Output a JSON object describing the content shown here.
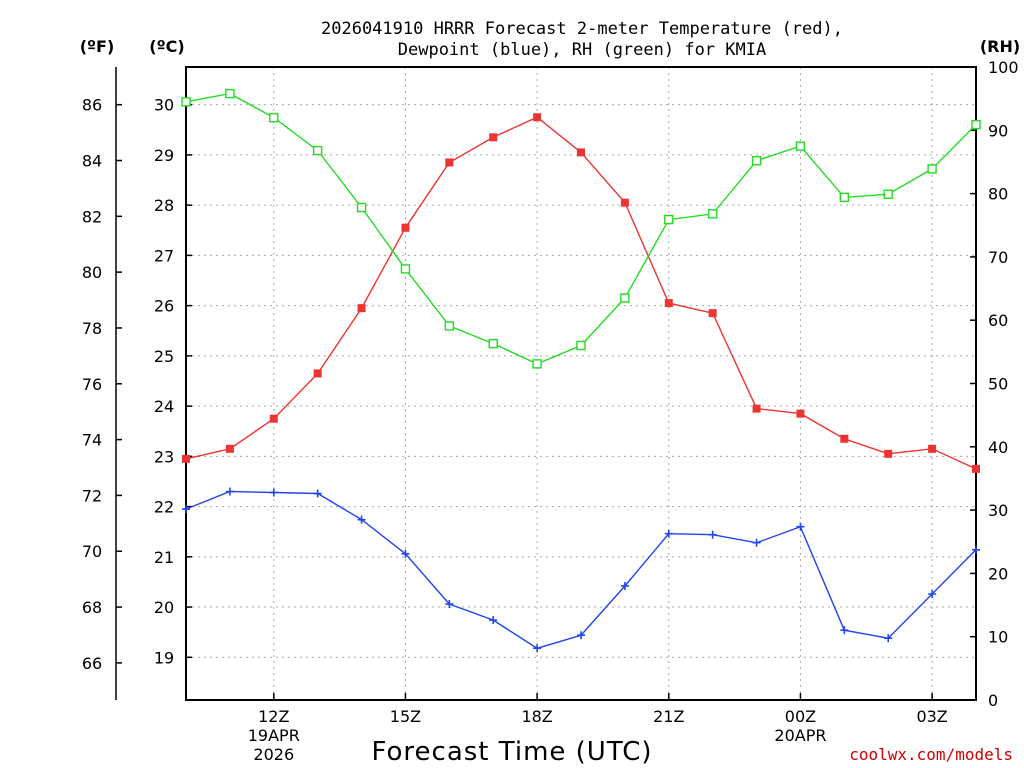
{
  "chart_data": {
    "type": "line",
    "title_line1": "2026041910 HRRR Forecast 2-meter Temperature (red),",
    "title_line2": "Dewpoint (blue), RH (green) for KMIA",
    "unit_f": "(ºF)",
    "unit_c": "(ºC)",
    "unit_rh": "(RH)",
    "xlabel": "Forecast Time (UTC)",
    "credit": "coolwx.com/models",
    "x_hours": [
      10,
      11,
      12,
      13,
      14,
      15,
      16,
      17,
      18,
      19,
      20,
      21,
      22,
      23,
      24,
      25,
      26,
      27,
      28
    ],
    "x_range": [
      10,
      28
    ],
    "x_ticks": [
      {
        "hour": 12,
        "line1": "12Z",
        "line2": "19APR",
        "line3": "2026"
      },
      {
        "hour": 15,
        "line1": "15Z",
        "line2": "",
        "line3": ""
      },
      {
        "hour": 18,
        "line1": "18Z",
        "line2": "",
        "line3": ""
      },
      {
        "hour": 21,
        "line1": "21Z",
        "line2": "",
        "line3": ""
      },
      {
        "hour": 24,
        "line1": "00Z",
        "line2": "20APR",
        "line3": ""
      },
      {
        "hour": 27,
        "line1": "03Z",
        "line2": "",
        "line3": ""
      }
    ],
    "y_left_c": {
      "range": [
        18.15,
        30.75
      ],
      "ticks": [
        19,
        20,
        21,
        22,
        23,
        24,
        25,
        26,
        27,
        28,
        29,
        30
      ]
    },
    "y_left_f": {
      "ticks": [
        66,
        68,
        70,
        72,
        74,
        76,
        78,
        80,
        82,
        84,
        86
      ]
    },
    "y_right_rh": {
      "range": [
        0,
        100
      ],
      "ticks": [
        0,
        10,
        20,
        30,
        40,
        50,
        60,
        70,
        80,
        90,
        100
      ]
    },
    "series": [
      {
        "name": "Temperature",
        "color": "#ee3333",
        "marker": "filled-square",
        "axis": "celsius",
        "values": [
          22.95,
          23.15,
          23.75,
          24.65,
          25.95,
          27.55,
          28.85,
          29.35,
          29.75,
          29.05,
          28.05,
          26.05,
          25.85,
          23.95,
          23.85,
          23.35,
          23.05,
          23.15,
          22.75
        ]
      },
      {
        "name": "Dewpoint",
        "color": "#2244ee",
        "marker": "plus",
        "axis": "celsius",
        "values": [
          21.95,
          22.3,
          22.28,
          22.26,
          21.74,
          21.06,
          20.06,
          19.74,
          19.18,
          19.44,
          20.42,
          21.46,
          21.44,
          21.28,
          21.6,
          19.54,
          19.38,
          20.26,
          21.14
        ]
      },
      {
        "name": "RH",
        "color": "#22dd22",
        "marker": "open-square",
        "axis": "rh",
        "values": [
          94.5,
          95.8,
          92.0,
          86.8,
          77.8,
          68.1,
          59.1,
          56.3,
          53.1,
          56.0,
          63.5,
          75.9,
          76.8,
          85.2,
          87.5,
          79.4,
          79.9,
          83.9,
          90.9
        ]
      }
    ]
  }
}
